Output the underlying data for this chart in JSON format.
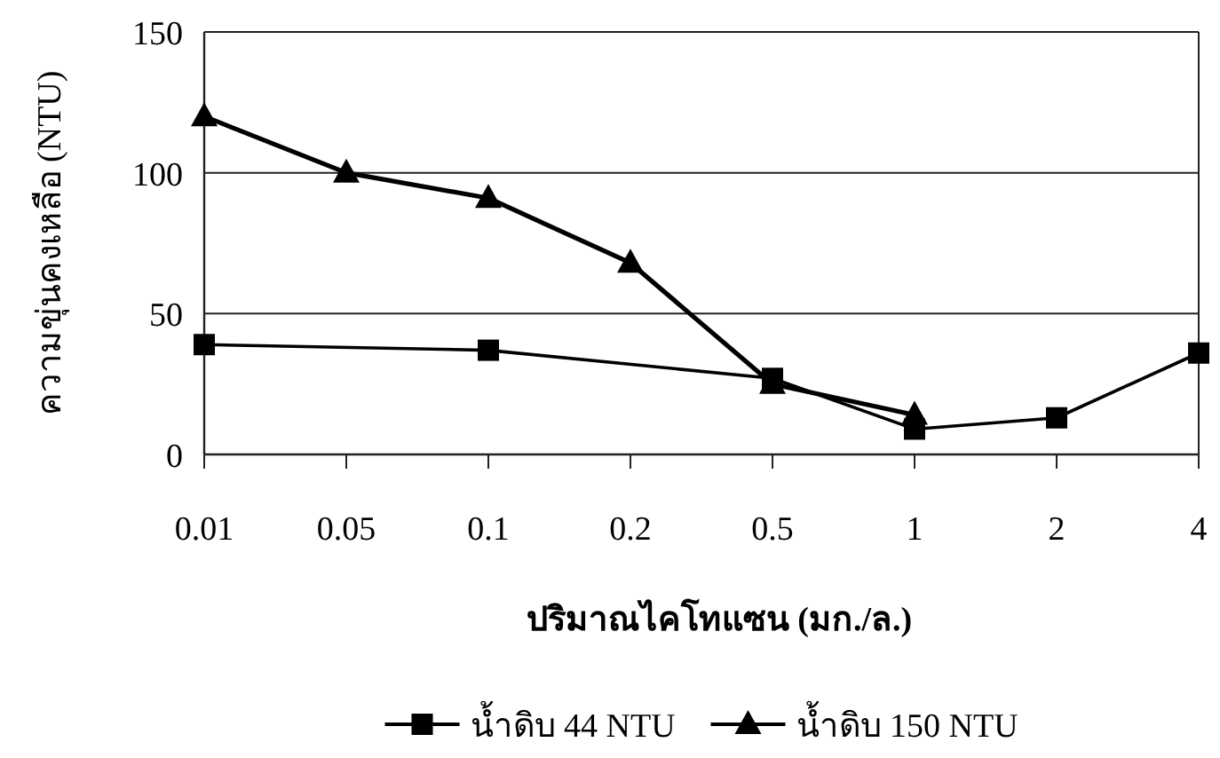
{
  "chart_data": {
    "type": "line",
    "xlabel": "ปริมาณไคโทแซน (มก./ล.)",
    "ylabel": "ความขุ่นคงเหลือ (NTU)",
    "categories": [
      "0.01",
      "0.05",
      "0.1",
      "0.2",
      "0.5",
      "1",
      "2",
      "4"
    ],
    "series": [
      {
        "name": "น้ำดิบ 44 NTU",
        "color": "#000000",
        "marker": "square",
        "values": [
          39,
          null,
          37,
          null,
          27,
          9,
          13,
          36
        ]
      },
      {
        "name": "น้ำดิบ 150 NTU",
        "color": "#000000",
        "marker": "triangle",
        "values": [
          120,
          100,
          91,
          68,
          25,
          14,
          null,
          null
        ]
      }
    ],
    "ylim": [
      0,
      150
    ],
    "yticks": [
      0,
      50,
      100,
      150
    ],
    "grid": "y",
    "legend": "bottom",
    "line_style": "solid"
  }
}
